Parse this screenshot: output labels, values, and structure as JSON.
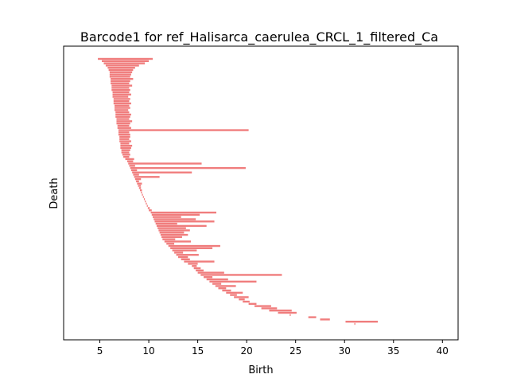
{
  "chart_data": {
    "type": "barcode",
    "title": "Barcode1 for ref_Halisarca_caerulea_CRCL_1_filtered_Ca",
    "xlabel": "Birth",
    "ylabel": "Death",
    "xlim": [
      1.3,
      41.6
    ],
    "xticks": [
      5,
      10,
      15,
      20,
      25,
      30,
      35,
      40
    ],
    "yticks_visible": false,
    "bar_color": "#f07d7d",
    "grid": false,
    "description_of_data": "Horizontal persistence bars stacked from top to bottom; bars start near birth 5-7 at the top and the start points move rightward along a curve toward birth ~30 at the bottom. Each bar spans [start, end] in birth units.",
    "bars": [
      [
        4.8,
        10.4
      ],
      [
        5.2,
        10.0
      ],
      [
        5.4,
        9.6
      ],
      [
        5.6,
        9.0
      ],
      [
        5.8,
        8.6
      ],
      [
        5.9,
        8.4
      ],
      [
        6.0,
        8.3
      ],
      [
        6.0,
        8.2
      ],
      [
        6.0,
        8.1
      ],
      [
        6.1,
        8.4
      ],
      [
        6.1,
        8.1
      ],
      [
        6.1,
        8.0
      ],
      [
        6.2,
        8.3
      ],
      [
        6.2,
        8.0
      ],
      [
        6.2,
        8.1
      ],
      [
        6.3,
        8.0
      ],
      [
        6.3,
        8.2
      ],
      [
        6.3,
        7.9
      ],
      [
        6.4,
        8.1
      ],
      [
        6.4,
        8.0
      ],
      [
        6.4,
        8.2
      ],
      [
        6.5,
        8.0
      ],
      [
        6.5,
        8.1
      ],
      [
        6.5,
        7.9
      ],
      [
        6.6,
        8.0
      ],
      [
        6.6,
        8.2
      ],
      [
        6.6,
        8.1
      ],
      [
        6.7,
        8.0
      ],
      [
        6.7,
        8.3
      ],
      [
        6.7,
        8.1
      ],
      [
        6.8,
        8.0
      ],
      [
        6.8,
        8.2
      ],
      [
        6.9,
        20.2
      ],
      [
        6.9,
        8.0
      ],
      [
        6.9,
        8.1
      ],
      [
        7.0,
        8.1
      ],
      [
        7.0,
        8.0
      ],
      [
        7.0,
        8.2
      ],
      [
        7.1,
        8.0
      ],
      [
        7.1,
        8.3
      ],
      [
        7.1,
        8.2
      ],
      [
        7.2,
        8.1
      ],
      [
        7.2,
        8.0
      ],
      [
        7.3,
        8.1
      ],
      [
        7.4,
        8.0
      ],
      [
        7.6,
        8.5
      ],
      [
        7.8,
        8.4
      ],
      [
        7.9,
        15.4
      ],
      [
        8.0,
        8.6
      ],
      [
        8.1,
        19.9
      ],
      [
        8.2,
        8.8
      ],
      [
        8.3,
        14.4
      ],
      [
        8.4,
        9.0
      ],
      [
        8.5,
        11.1
      ],
      [
        8.6,
        9.2
      ],
      [
        8.7,
        9.0
      ],
      [
        8.8,
        9.3
      ],
      [
        8.9,
        9.2
      ],
      [
        9.0,
        9.2
      ],
      [
        9.1,
        9.3
      ],
      [
        9.2,
        9.3
      ],
      [
        9.3,
        9.4
      ],
      [
        9.4,
        9.5
      ],
      [
        9.5,
        9.6
      ],
      [
        9.6,
        9.7
      ],
      [
        9.7,
        9.8
      ],
      [
        9.8,
        9.9
      ],
      [
        9.9,
        10.1
      ],
      [
        10.0,
        10.3
      ],
      [
        10.2,
        16.9
      ],
      [
        10.3,
        15.2
      ],
      [
        10.4,
        13.3
      ],
      [
        10.5,
        14.8
      ],
      [
        10.6,
        16.7
      ],
      [
        10.7,
        12.9
      ],
      [
        10.8,
        15.9
      ],
      [
        10.9,
        13.8
      ],
      [
        11.0,
        14.2
      ],
      [
        11.1,
        13.6
      ],
      [
        11.2,
        14.0
      ],
      [
        11.3,
        13.4
      ],
      [
        11.4,
        12.7
      ],
      [
        11.6,
        14.3
      ],
      [
        11.8,
        12.6
      ],
      [
        12.0,
        17.3
      ],
      [
        12.2,
        16.5
      ],
      [
        12.4,
        14.9
      ],
      [
        12.6,
        13.5
      ],
      [
        12.8,
        15.1
      ],
      [
        13.0,
        14.0
      ],
      [
        13.3,
        14.2
      ],
      [
        13.6,
        16.7
      ],
      [
        14.0,
        15.0
      ],
      [
        14.4,
        14.9
      ],
      [
        14.6,
        15.3
      ],
      [
        14.8,
        15.6
      ],
      [
        15.0,
        17.7
      ],
      [
        15.3,
        23.6
      ],
      [
        15.6,
        16.5
      ],
      [
        15.9,
        18.1
      ],
      [
        16.2,
        21.0
      ],
      [
        16.5,
        17.4
      ],
      [
        16.8,
        18.9
      ],
      [
        17.1,
        17.9
      ],
      [
        17.5,
        18.4
      ],
      [
        17.9,
        19.6
      ],
      [
        18.3,
        19.0
      ],
      [
        18.7,
        20.2
      ],
      [
        19.2,
        19.8
      ],
      [
        19.6,
        20.3
      ],
      [
        20.2,
        21.0
      ],
      [
        20.8,
        22.5
      ],
      [
        21.5,
        23.1
      ],
      [
        22.3,
        24.6
      ],
      [
        23.2,
        25.1
      ],
      [
        24.4,
        24.5
      ],
      [
        26.3,
        27.1
      ],
      [
        27.5,
        28.5
      ],
      [
        30.1,
        33.4
      ],
      [
        31.0,
        31.1
      ]
    ]
  }
}
